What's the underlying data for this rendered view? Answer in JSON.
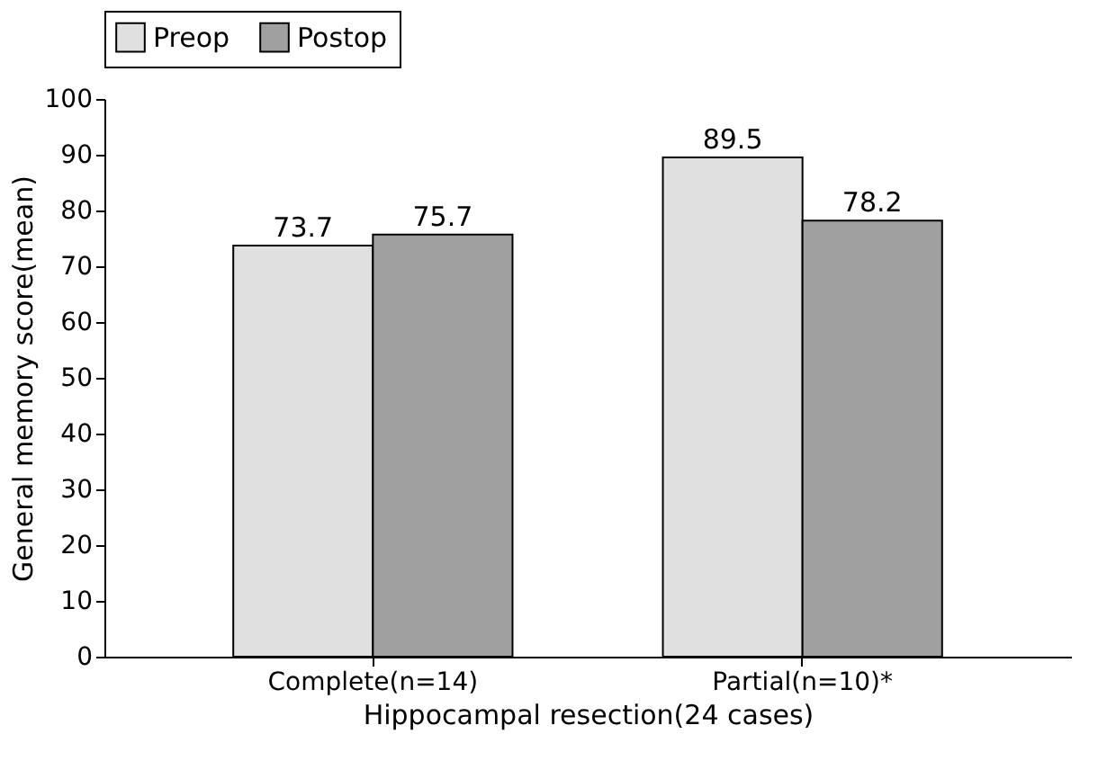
{
  "chart_data": {
    "type": "bar",
    "xlabel": "Hippocampal resection(24 cases)",
    "ylabel": "General memory score(mean)",
    "categories": [
      "Complete(n=14)",
      "Partial(n=10)*"
    ],
    "series": [
      {
        "name": "Preop",
        "color": "#e0e0e0",
        "values": [
          73.7,
          89.5
        ]
      },
      {
        "name": "Postop",
        "color": "#a0a0a0",
        "values": [
          75.7,
          78.2
        ]
      }
    ],
    "ylim": [
      0,
      100
    ],
    "yticks": [
      0,
      10,
      20,
      30,
      40,
      50,
      60,
      70,
      80,
      90,
      100
    ],
    "grid": false,
    "legend": "top",
    "data_labels": true
  }
}
